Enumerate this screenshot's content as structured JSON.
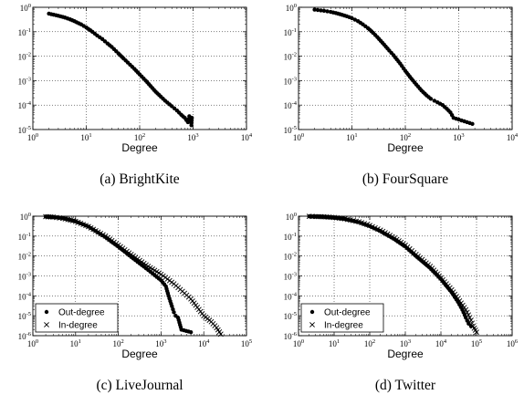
{
  "chart_data": [
    {
      "type": "scatter",
      "caption": "(a)  BrightKite",
      "xlabel": "Degree",
      "ylabel": "",
      "xscale": "log",
      "yscale": "log",
      "xlim": [
        1,
        10000
      ],
      "ylim": [
        1e-05,
        1
      ],
      "x_ticks": [
        {
          "b": "10",
          "e": "0"
        },
        {
          "b": "10",
          "e": "1"
        },
        {
          "b": "10",
          "e": "2"
        },
        {
          "b": "10",
          "e": "3"
        },
        {
          "b": "10",
          "e": "4"
        }
      ],
      "y_ticks": [
        {
          "b": "10",
          "e": "-5"
        },
        {
          "b": "10",
          "e": "-4"
        },
        {
          "b": "10",
          "e": "-3"
        },
        {
          "b": "10",
          "e": "-2"
        },
        {
          "b": "10",
          "e": "-1"
        },
        {
          "b": "10",
          "e": "0"
        }
      ],
      "grid": true,
      "legend": null,
      "series": [
        {
          "marker": "dot",
          "x": [
            2,
            3,
            4,
            5,
            6,
            8,
            10,
            13,
            16,
            20,
            25,
            30,
            40,
            50,
            60,
            80,
            100,
            130,
            160,
            200,
            250,
            300,
            400,
            500,
            600,
            700,
            800,
            850,
            900,
            930,
            950
          ],
          "y": [
            0.55,
            0.45,
            0.38,
            0.32,
            0.27,
            0.2,
            0.15,
            0.1,
            0.07,
            0.05,
            0.033,
            0.024,
            0.013,
            0.008,
            0.0055,
            0.003,
            0.0018,
            0.001,
            0.0006,
            0.00035,
            0.00022,
            0.00015,
            9e-05,
            6e-05,
            4e-05,
            3e-05,
            2e-05,
            3.5e-05,
            2.5e-05,
            1.5e-05,
            3e-05
          ]
        }
      ]
    },
    {
      "type": "scatter",
      "caption": "(b)  FourSquare",
      "xlabel": "Degree",
      "ylabel": "",
      "xscale": "log",
      "yscale": "log",
      "xlim": [
        1,
        10000
      ],
      "ylim": [
        1e-05,
        1
      ],
      "x_ticks": [
        {
          "b": "10",
          "e": "0"
        },
        {
          "b": "10",
          "e": "1"
        },
        {
          "b": "10",
          "e": "2"
        },
        {
          "b": "10",
          "e": "3"
        },
        {
          "b": "10",
          "e": "4"
        }
      ],
      "y_ticks": [
        {
          "b": "10",
          "e": "-5"
        },
        {
          "b": "10",
          "e": "-4"
        },
        {
          "b": "10",
          "e": "-3"
        },
        {
          "b": "10",
          "e": "-2"
        },
        {
          "b": "10",
          "e": "-1"
        },
        {
          "b": "10",
          "e": "0"
        }
      ],
      "grid": true,
      "legend": null,
      "series": [
        {
          "marker": "dot",
          "x": [
            2,
            3,
            4,
            5,
            6,
            8,
            10,
            13,
            16,
            20,
            25,
            30,
            40,
            50,
            60,
            80,
            100,
            130,
            160,
            200,
            250,
            300,
            350,
            400,
            500,
            600,
            700,
            800,
            1800
          ],
          "y": [
            0.8,
            0.72,
            0.65,
            0.58,
            0.52,
            0.43,
            0.36,
            0.27,
            0.2,
            0.14,
            0.09,
            0.06,
            0.03,
            0.017,
            0.011,
            0.005,
            0.0025,
            0.0012,
            0.0007,
            0.0004,
            0.00025,
            0.00018,
            0.00015,
            0.00013,
            0.0001,
            7e-05,
            5e-05,
            3e-05,
            1.7e-05
          ]
        }
      ]
    },
    {
      "type": "scatter",
      "caption": "(c)  LiveJournal",
      "xlabel": "Degree",
      "ylabel": "",
      "xscale": "log",
      "yscale": "log",
      "xlim": [
        1,
        100000
      ],
      "ylim": [
        1e-06,
        1
      ],
      "x_ticks": [
        {
          "b": "10",
          "e": "0"
        },
        {
          "b": "10",
          "e": "1"
        },
        {
          "b": "10",
          "e": "2"
        },
        {
          "b": "10",
          "e": "3"
        },
        {
          "b": "10",
          "e": "4"
        },
        {
          "b": "10",
          "e": "5"
        }
      ],
      "y_ticks": [
        {
          "b": "10",
          "e": "-6"
        },
        {
          "b": "10",
          "e": "-5"
        },
        {
          "b": "10",
          "e": "-4"
        },
        {
          "b": "10",
          "e": "-3"
        },
        {
          "b": "10",
          "e": "-2"
        },
        {
          "b": "10",
          "e": "-1"
        },
        {
          "b": "10",
          "e": "0"
        }
      ],
      "grid": true,
      "legend": {
        "position": "bottom-left",
        "entries": [
          "Out-degree",
          "In-degree"
        ]
      },
      "series": [
        {
          "name": "Out-degree",
          "marker": "dot",
          "x": [
            2,
            3,
            5,
            10,
            20,
            50,
            100,
            200,
            500,
            1000,
            1300,
            1500,
            1800,
            2000,
            2200,
            2500,
            3000,
            5000
          ],
          "y": [
            0.95,
            0.9,
            0.8,
            0.55,
            0.3,
            0.09,
            0.03,
            0.009,
            0.002,
            0.0006,
            0.0003,
            0.0001,
            3e-05,
            1.5e-05,
            1e-05,
            8e-06,
            2e-06,
            1.5e-06
          ]
        },
        {
          "name": "In-degree",
          "marker": "cross",
          "x": [
            2,
            3,
            5,
            10,
            20,
            50,
            100,
            200,
            500,
            1000,
            2000,
            5000,
            10000,
            15000,
            20000,
            25000
          ],
          "y": [
            0.95,
            0.9,
            0.78,
            0.55,
            0.3,
            0.1,
            0.035,
            0.012,
            0.003,
            0.0012,
            0.0004,
            7e-05,
            1e-05,
            5e-06,
            2.5e-06,
            1.2e-06
          ]
        }
      ]
    },
    {
      "type": "scatter",
      "caption": "(d)  Twitter",
      "xlabel": "Degree",
      "ylabel": "",
      "xscale": "log",
      "yscale": "log",
      "xlim": [
        1,
        1000000
      ],
      "ylim": [
        1e-06,
        1
      ],
      "x_ticks": [
        {
          "b": "10",
          "e": "0"
        },
        {
          "b": "10",
          "e": "1"
        },
        {
          "b": "10",
          "e": "2"
        },
        {
          "b": "10",
          "e": "3"
        },
        {
          "b": "10",
          "e": "4"
        },
        {
          "b": "10",
          "e": "5"
        },
        {
          "b": "10",
          "e": "6"
        }
      ],
      "y_ticks": [
        {
          "b": "10",
          "e": "-6"
        },
        {
          "b": "10",
          "e": "-5"
        },
        {
          "b": "10",
          "e": "-4"
        },
        {
          "b": "10",
          "e": "-3"
        },
        {
          "b": "10",
          "e": "-2"
        },
        {
          "b": "10",
          "e": "-1"
        },
        {
          "b": "10",
          "e": "0"
        }
      ],
      "grid": true,
      "legend": {
        "position": "bottom-left",
        "entries": [
          "Out-degree",
          "In-degree"
        ]
      },
      "series": [
        {
          "name": "Out-degree",
          "marker": "dot",
          "x": [
            2,
            3,
            5,
            10,
            20,
            50,
            100,
            200,
            500,
            1000,
            2000,
            5000,
            10000,
            20000,
            30000,
            40000,
            50000,
            60000,
            70000
          ],
          "y": [
            0.98,
            0.96,
            0.93,
            0.85,
            0.72,
            0.5,
            0.32,
            0.18,
            0.07,
            0.03,
            0.01,
            0.0025,
            0.0007,
            0.00015,
            5e-05,
            2e-05,
            8e-06,
            4e-06,
            3e-06
          ]
        },
        {
          "name": "In-degree",
          "marker": "cross",
          "x": [
            2,
            3,
            5,
            10,
            20,
            50,
            100,
            200,
            500,
            1000,
            2000,
            5000,
            10000,
            20000,
            50000,
            70000,
            80000,
            100000
          ],
          "y": [
            0.98,
            0.96,
            0.93,
            0.86,
            0.74,
            0.52,
            0.34,
            0.2,
            0.08,
            0.035,
            0.012,
            0.003,
            0.0008,
            0.0002,
            2e-05,
            6e-06,
            3e-06,
            1.5e-06
          ]
        }
      ]
    }
  ]
}
